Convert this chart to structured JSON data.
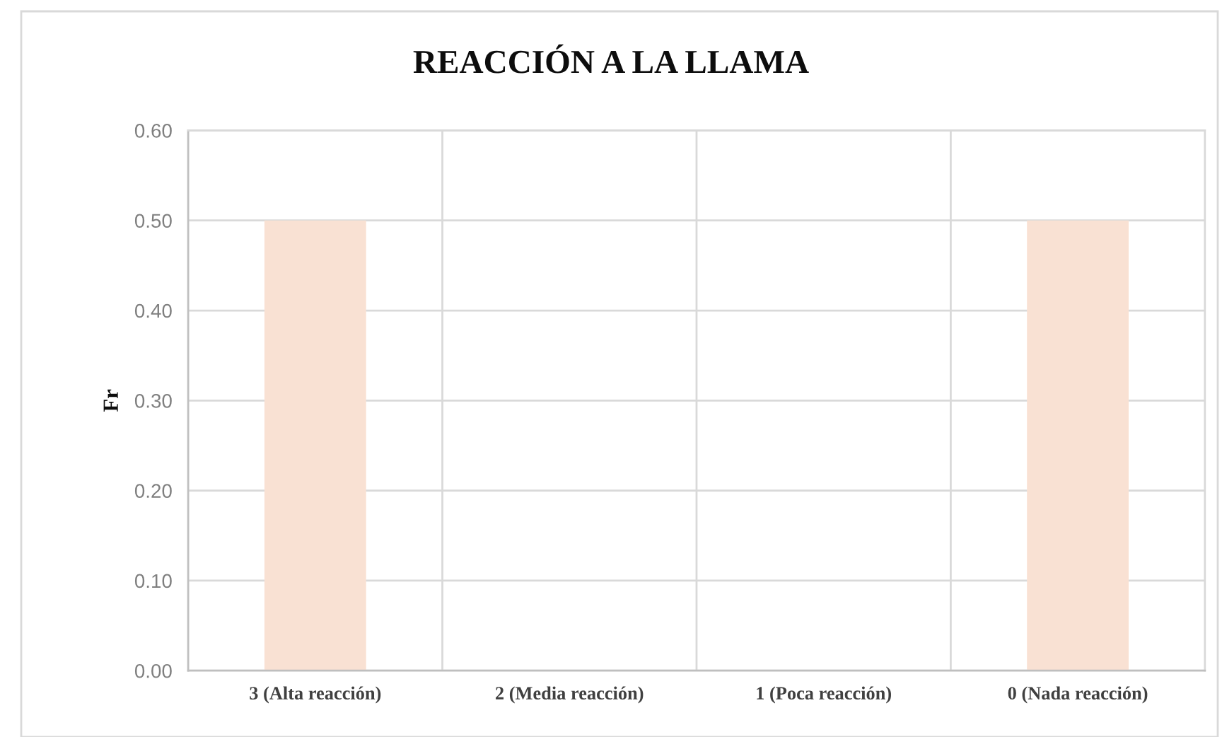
{
  "chart_data": {
    "type": "bar",
    "title": "REACCIÓN A LA LLAMA",
    "ylabel": "Fr",
    "categories": [
      "3 (Alta reacción)",
      "2 (Media reacción)",
      "1 (Poca reacción)",
      "0 (Nada reacción)"
    ],
    "values": [
      0.5,
      0,
      0,
      0.5
    ],
    "color": "#f9e1d3",
    "ylim": [
      0,
      0.6
    ],
    "yticks": [
      {
        "value": 0,
        "label": "0.00"
      },
      {
        "value": 0.1,
        "label": "0.10"
      },
      {
        "value": 0.2,
        "label": "0.20"
      },
      {
        "value": 0.3,
        "label": "0.30"
      },
      {
        "value": 0.4,
        "label": "0.40"
      },
      {
        "value": 0.5,
        "label": "0.50"
      },
      {
        "value": 0.6,
        "label": "0.60"
      }
    ],
    "grid": true,
    "legend": false
  }
}
